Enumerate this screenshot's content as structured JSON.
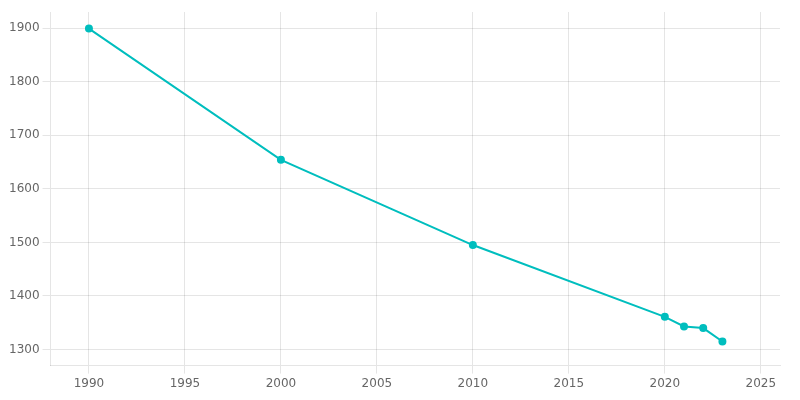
{
  "chart_data": {
    "type": "line",
    "x": [
      1990,
      2000,
      2010,
      2020,
      2021,
      2022,
      2023
    ],
    "values": [
      1899,
      1654,
      1495,
      1361,
      1343,
      1340,
      1315
    ],
    "color": "#00BEBE",
    "marker": "circle",
    "xlim": [
      1988,
      2026
    ],
    "ylim": [
      1270,
      1930
    ],
    "xticks": [
      1990,
      1995,
      2000,
      2005,
      2010,
      2015,
      2020,
      2025
    ],
    "yticks": [
      1300,
      1400,
      1500,
      1600,
      1700,
      1800,
      1900
    ],
    "grid": true
  }
}
